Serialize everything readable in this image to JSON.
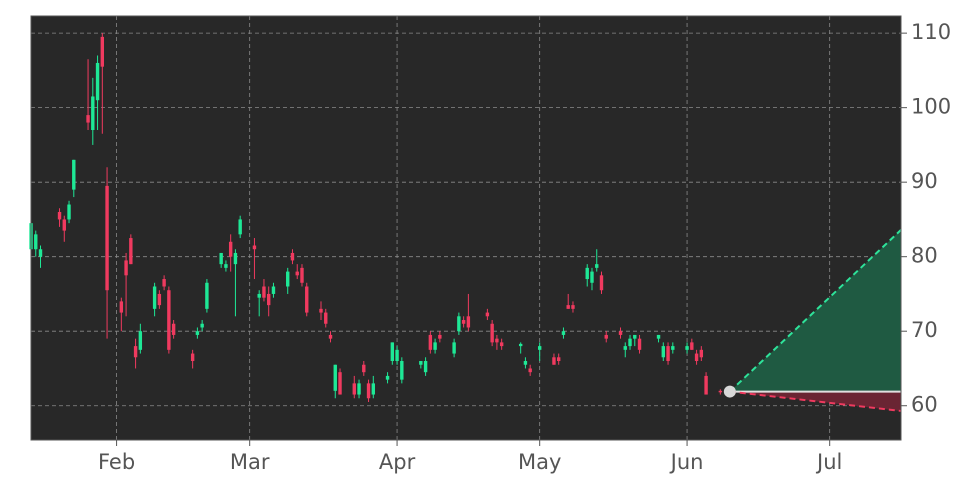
{
  "chart_data": {
    "type": "candlestick",
    "up_color": "#1ee896",
    "down_color": "#f03a5f",
    "background": "#282828",
    "grid": true,
    "xlim": [
      14,
      197
    ],
    "ylim": [
      55.4,
      112.3
    ],
    "xticks": [
      {
        "value": 32,
        "label": "Feb"
      },
      {
        "value": 60,
        "label": "Mar"
      },
      {
        "value": 91,
        "label": "Apr"
      },
      {
        "value": 121,
        "label": "May"
      },
      {
        "value": 152,
        "label": "Jun"
      },
      {
        "value": 182,
        "label": "Jul"
      }
    ],
    "yticks": [
      60,
      70,
      80,
      90,
      100,
      110
    ],
    "candles": {
      "x": [
        14,
        15,
        16,
        20,
        21,
        22,
        23,
        26,
        27,
        28,
        29,
        30,
        33,
        34,
        35,
        36,
        37,
        40,
        41,
        42,
        43,
        44,
        48,
        49,
        50,
        51,
        54,
        55,
        56,
        57,
        58,
        61,
        62,
        63,
        64,
        65,
        68,
        69,
        70,
        71,
        72,
        75,
        76,
        77,
        78,
        79,
        82,
        83,
        84,
        85,
        86,
        89,
        90,
        91,
        92,
        96,
        97,
        98,
        99,
        100,
        103,
        104,
        105,
        106,
        110,
        111,
        112,
        113,
        117,
        118,
        119,
        121,
        124,
        125,
        126,
        127,
        128,
        131,
        132,
        133,
        134,
        135,
        138,
        139,
        140,
        141,
        142,
        146,
        147,
        148,
        149,
        152,
        153,
        154,
        155,
        156,
        159
      ],
      "open": [
        81,
        81,
        80,
        86,
        85,
        85,
        89,
        99,
        97,
        101,
        109.5,
        89.5,
        74,
        79.5,
        82.5,
        68,
        67.5,
        73,
        75,
        77,
        75.5,
        71,
        67,
        69.5,
        70.5,
        73,
        79,
        78.5,
        82,
        79,
        83,
        81.5,
        74.5,
        76,
        75,
        75,
        76,
        80.5,
        78,
        78.5,
        76,
        73,
        72.5,
        69.5,
        62,
        64.5,
        63,
        61.5,
        65.5,
        63,
        61.5,
        63.5,
        66,
        66,
        63.5,
        65.5,
        64.5,
        69.5,
        67.5,
        69.5,
        67,
        70,
        71.5,
        72,
        72.5,
        71,
        69,
        68.5,
        68,
        65.5,
        65,
        67.5,
        66.5,
        66.5,
        69.5,
        73.5,
        73.5,
        77,
        76.5,
        78.5,
        77.5,
        69.5,
        70,
        67.5,
        68,
        69,
        69,
        69,
        66.5,
        68,
        67.5,
        67.5,
        68.5,
        67,
        67.5,
        64,
        62
      ],
      "high": [
        85,
        83.5,
        81.5,
        86.5,
        85.5,
        87.5,
        93,
        106.5,
        104,
        107,
        110,
        92,
        74.5,
        80.5,
        83,
        69,
        71,
        76.5,
        75.5,
        77.5,
        76,
        71.5,
        67.5,
        70.5,
        71.5,
        77,
        80.5,
        79.5,
        83,
        81,
        85.5,
        82.5,
        75.5,
        77,
        76,
        76.5,
        78.5,
        81,
        79,
        79,
        76.5,
        74,
        73,
        70,
        65.5,
        65,
        64,
        63.5,
        66,
        63.5,
        64,
        64.5,
        68.5,
        68,
        66.5,
        66,
        66.5,
        70,
        69,
        70,
        69,
        72.5,
        72,
        75,
        73,
        71.5,
        69.5,
        69,
        68.5,
        66.5,
        65.5,
        68.5,
        67,
        67,
        70.5,
        75,
        74,
        79,
        78.5,
        81,
        78,
        70,
        70.5,
        68.5,
        69.5,
        69.5,
        69.5,
        69.5,
        68.5,
        68.5,
        68.5,
        68.5,
        69,
        67.5,
        68,
        64.5,
        62.2
      ],
      "low": [
        80,
        80,
        78.5,
        84,
        82,
        84.5,
        88,
        97,
        95,
        97,
        96.5,
        69,
        70,
        72,
        79,
        65,
        67,
        72,
        73,
        75.5,
        67,
        69,
        65,
        69,
        70,
        72.5,
        78.5,
        78,
        78,
        72,
        82.5,
        77,
        72,
        74,
        72,
        74.5,
        75,
        79,
        77,
        76,
        72,
        71.5,
        70.5,
        68.5,
        61,
        61.5,
        61,
        61,
        64,
        60.5,
        61,
        63,
        65.5,
        65.5,
        63,
        65,
        64,
        67,
        67,
        68.5,
        66.5,
        69.5,
        70.5,
        70,
        71.5,
        68,
        67.5,
        67.5,
        67,
        65,
        64,
        66,
        65.5,
        65.5,
        69,
        73,
        72.5,
        76,
        75.5,
        78,
        75,
        68.5,
        69,
        66.5,
        67.5,
        68,
        67,
        68.5,
        66,
        65.5,
        67,
        67,
        67.5,
        65.5,
        66,
        61.5,
        61.5
      ],
      "close": [
        84.5,
        83,
        81,
        85,
        83.5,
        87,
        93,
        98,
        101.5,
        106,
        105.5,
        75.5,
        72.5,
        77.5,
        79,
        66.5,
        70,
        76,
        73.5,
        76,
        67.5,
        69.5,
        66,
        70,
        71,
        76.5,
        80.5,
        79,
        80,
        80.5,
        85,
        81,
        75,
        74.5,
        73.5,
        76,
        78,
        79.5,
        77.5,
        76.5,
        72.5,
        72.5,
        71,
        69,
        65.5,
        61.5,
        61.5,
        63,
        64.5,
        61,
        63,
        64,
        68.5,
        67.5,
        66,
        66,
        66,
        67.5,
        68.5,
        69,
        68.5,
        72,
        71,
        70.5,
        72,
        68.5,
        68.5,
        68,
        68.3,
        66,
        64.5,
        68,
        65.5,
        66,
        70,
        73,
        73,
        78.5,
        78,
        79,
        75.5,
        69,
        69.5,
        68,
        69,
        69.5,
        67.5,
        69.5,
        68,
        66,
        68,
        68,
        67.5,
        66,
        66.5,
        61.5,
        61.8
      ]
    },
    "forecast": {
      "x": [
        161,
        197
      ],
      "upper": [
        61.9,
        83.6
      ],
      "mid": [
        61.9,
        61.9
      ],
      "lower": [
        61.9,
        59.3
      ],
      "upper_color": "#2ee39a",
      "upper_fill": "#1f5a42",
      "lower_color": "#f03a5f",
      "lower_fill": "#6a2533",
      "mid_color": "#e0e0e0"
    }
  }
}
